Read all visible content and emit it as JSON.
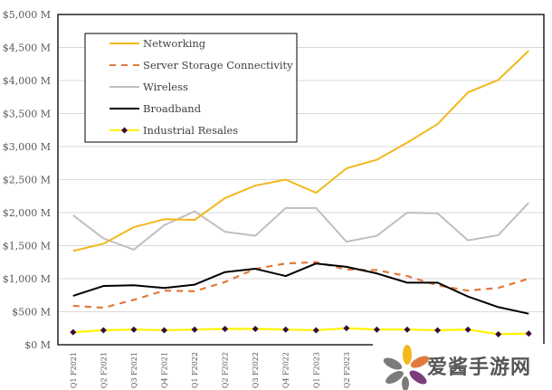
{
  "chart_data": {
    "type": "line",
    "title": "",
    "xlabel": "",
    "ylabel": "",
    "ylim": [
      0,
      5000
    ],
    "ytick_step": 500,
    "yticks": [
      "$0 M",
      "$500 M",
      "$1,000 M",
      "$1,500 M",
      "$2,000 M",
      "$2,500 M",
      "$3,000 M",
      "$3,500 M",
      "$4,000 M",
      "$4,500 M",
      "$5,000 M"
    ],
    "grid": "horizontal",
    "legend_position": "top-left",
    "categories": [
      "Q1 F2021",
      "Q2 F2021",
      "Q3 F2021",
      "Q4 F2021",
      "Q1 F2022",
      "Q2 F2022",
      "Q3 F2022",
      "Q4 F2022",
      "Q1 F2023",
      "Q2 F2023",
      "",
      "",
      "",
      "",
      "",
      ""
    ],
    "series": [
      {
        "name": "Networking",
        "color": "#F2B81C",
        "style": "solid",
        "values": [
          1420,
          1530,
          1780,
          1900,
          1890,
          2220,
          2410,
          2500,
          2300,
          2670,
          2800,
          3060,
          3340,
          3820,
          4010,
          4450
        ]
      },
      {
        "name": "Server Storage Connectivity",
        "color": "#E07B3C",
        "style": "dashed",
        "values": [
          590,
          560,
          680,
          820,
          810,
          950,
          1150,
          1230,
          1250,
          1140,
          1130,
          1040,
          900,
          820,
          860,
          1000
        ]
      },
      {
        "name": "Wireless",
        "color": "#BFBFBF",
        "style": "solid",
        "values": [
          1960,
          1610,
          1440,
          1810,
          2020,
          1710,
          1650,
          2070,
          2070,
          1560,
          1650,
          2000,
          1990,
          1580,
          1660,
          2150
        ]
      },
      {
        "name": "Broadband",
        "color": "#000000",
        "style": "solid",
        "values": [
          740,
          890,
          900,
          860,
          910,
          1100,
          1150,
          1040,
          1230,
          1180,
          1080,
          940,
          940,
          730,
          570,
          470
        ]
      },
      {
        "name": "Industrial Resales",
        "color": "#FFF200",
        "marker_color": "#3B0A3B",
        "style": "solid-marker",
        "values": [
          190,
          220,
          230,
          220,
          230,
          240,
          240,
          230,
          220,
          250,
          230,
          230,
          220,
          230,
          160,
          170
        ]
      }
    ]
  },
  "watermark": {
    "text": "爱酱手游网"
  }
}
